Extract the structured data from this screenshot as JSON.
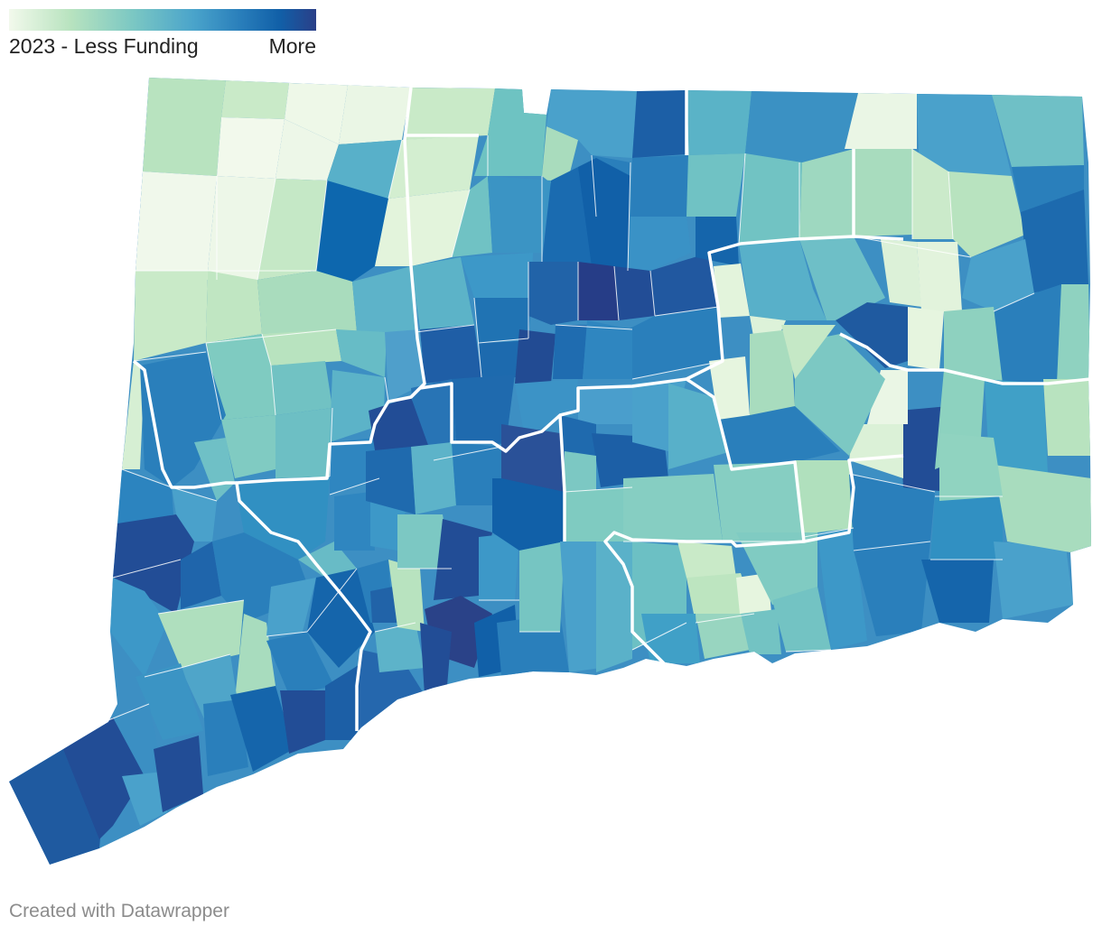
{
  "legend": {
    "low_label": "2023 - Less Funding",
    "high_label": "More",
    "gradient": [
      "#f2f9ec",
      "#b8e3bf",
      "#7cc8c3",
      "#4aa4cb",
      "#2a7fbb",
      "#1160a8",
      "#2a3f88"
    ]
  },
  "footer": {
    "credit": "Created with Datawrapper"
  },
  "colors": {
    "boundary": "#ffffff",
    "region_border": "#ffffff"
  },
  "map_data": {
    "type": "choropleth",
    "region": "Connecticut municipalities",
    "scale_min_label": "Less Funding",
    "scale_max_label": "More",
    "funding_levels": [
      0,
      1,
      2,
      3,
      4,
      5,
      6
    ]
  }
}
